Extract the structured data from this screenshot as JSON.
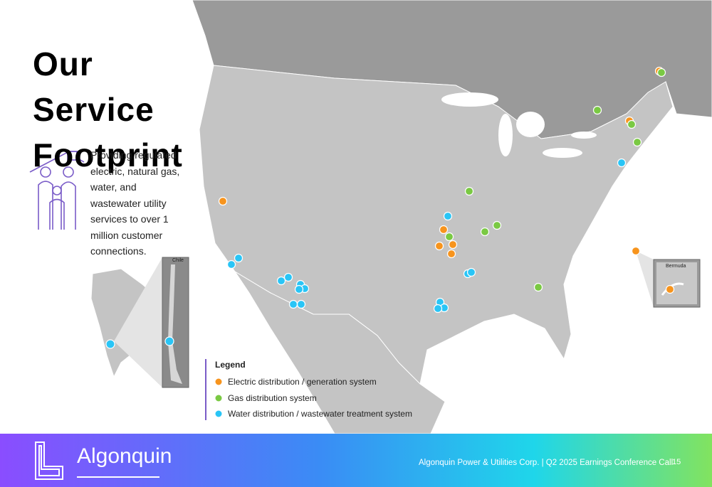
{
  "title": "Our Service Footprint",
  "description": "Providing regulated electric, natural gas, water, and wastewater utility services to over 1 million customer connections.",
  "insets": {
    "chile": "Chile",
    "bermuda": "Bermuda"
  },
  "legend": {
    "title": "Legend",
    "items": [
      "Electric distribution / generation system",
      "Gas distribution system",
      "Water distribution / wastewater treatment system"
    ]
  },
  "footer": {
    "logo": "Algonquin",
    "caption": "Algonquin Power & Utilities Corp. | Q2 2025 Earnings Conference Call",
    "page": "15"
  }
}
